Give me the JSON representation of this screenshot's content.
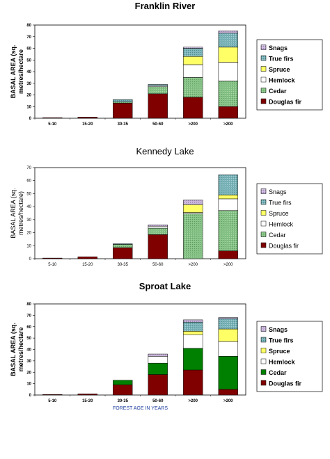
{
  "palette": {
    "Douglas fir": "#800000",
    "Cedar": "#86c286",
    "Cedar_vivid": "#008000",
    "Hemlock": "#ffffff",
    "Spruce": "#ffff66",
    "True firs": "#7ab3b8",
    "Snags": "#c7b3d9"
  },
  "chart_data": [
    {
      "type": "bar",
      "stacked": true,
      "title": "Franklin River",
      "ylabel": "BASAL AREA (sq. metres/hectare",
      "xlabel": "",
      "ylim": [
        0,
        80
      ],
      "yticks": [
        0,
        10,
        20,
        30,
        40,
        50,
        60,
        70,
        80
      ],
      "categories": [
        "5-10",
        "15-20",
        "30-35",
        "50-60",
        ">200",
        ">200"
      ],
      "legend": "right",
      "legend_entries": [
        "Snags",
        "True firs",
        "Spruce",
        "Hemlock",
        "Cedar",
        "Douglas fir"
      ],
      "series": [
        {
          "name": "Douglas fir",
          "values": [
            0.5,
            1,
            13,
            21,
            18,
            10
          ]
        },
        {
          "name": "Cedar",
          "values": [
            0,
            0,
            1,
            6,
            17,
            22
          ]
        },
        {
          "name": "Hemlock",
          "values": [
            0,
            0,
            0,
            1,
            11,
            16
          ]
        },
        {
          "name": "Spruce",
          "values": [
            0,
            0,
            0,
            0,
            7,
            13
          ]
        },
        {
          "name": "True firs",
          "values": [
            0,
            0,
            2,
            1,
            7,
            12
          ]
        },
        {
          "name": "Snags",
          "values": [
            0,
            0,
            0,
            0,
            1,
            2
          ]
        }
      ]
    },
    {
      "type": "bar",
      "stacked": true,
      "title": "Kennedy Lake",
      "ylabel": "BASAL AREA (sq. metres/hectare)",
      "xlabel": "",
      "ylim": [
        0,
        70
      ],
      "yticks": [
        0,
        10,
        20,
        30,
        40,
        50,
        60,
        70
      ],
      "categories": [
        "5-10",
        "15-20",
        "30-35",
        "50-60",
        ">200",
        ">200"
      ],
      "legend": "right",
      "legend_entries": [
        "Snags",
        "True firs",
        "Spruce",
        "Hemlock",
        "Cedar",
        "Douglas fir"
      ],
      "series": [
        {
          "name": "Douglas fir",
          "values": [
            0.5,
            1.5,
            8.5,
            18.5,
            0,
            6
          ]
        },
        {
          "name": "Cedar",
          "values": [
            0,
            0,
            2.5,
            5,
            34.5,
            31
          ]
        },
        {
          "name": "Hemlock",
          "values": [
            0,
            0,
            0,
            1.5,
            1,
            9
          ]
        },
        {
          "name": "Spruce",
          "values": [
            0,
            0,
            0,
            0,
            6,
            3
          ]
        },
        {
          "name": "True firs",
          "values": [
            0,
            0,
            0.5,
            0,
            0,
            15.5
          ]
        },
        {
          "name": "Snags",
          "values": [
            0,
            0,
            0,
            1,
            3.5,
            0
          ]
        }
      ]
    },
    {
      "type": "bar",
      "stacked": true,
      "title": "Sproat Lake",
      "ylabel": "BASAL AREA (sq. metres/hectare",
      "xlabel": "FOREST AGE IN YEARS",
      "ylim": [
        0,
        80
      ],
      "yticks": [
        0,
        10,
        20,
        30,
        40,
        50,
        60,
        70,
        80
      ],
      "categories": [
        "5-10",
        "15-20",
        "30-35",
        "50-60",
        ">200",
        ">200"
      ],
      "legend": "right",
      "legend_entries": [
        "Snags",
        "True firs",
        "Spruce",
        "Hemlock",
        "Cedar",
        "Douglas fir"
      ],
      "series": [
        {
          "name": "Douglas fir",
          "values": [
            0.5,
            1,
            9,
            18,
            22,
            5
          ]
        },
        {
          "name": "Cedar",
          "values": [
            0,
            0,
            4,
            10,
            19,
            29
          ]
        },
        {
          "name": "Hemlock",
          "values": [
            0,
            0,
            0,
            6,
            12,
            13
          ]
        },
        {
          "name": "Spruce",
          "values": [
            0,
            0,
            0,
            0,
            3,
            11
          ]
        },
        {
          "name": "True firs",
          "values": [
            0,
            0,
            0,
            0,
            8,
            9
          ]
        },
        {
          "name": "Snags",
          "values": [
            0,
            0,
            0,
            2,
            2,
            1
          ]
        }
      ]
    }
  ]
}
